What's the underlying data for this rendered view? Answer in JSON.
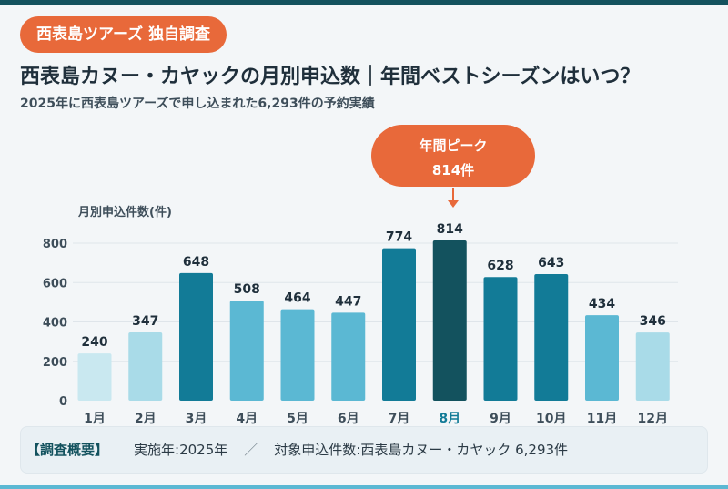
{
  "tag": "西表島ツアーズ 独自調査",
  "title": "西表島カヌー・カヤックの月別申込数｜年間ベストシーズンはいつ？",
  "subtitle": "2025年に西表島ツアーズで申し込まれた6,293件の予約実績",
  "peak": {
    "line1": "年間ピーク",
    "line2": "814件"
  },
  "footer": {
    "label": "【調査概要】",
    "year": "実施年:2025年",
    "separator": "／",
    "target": "対象申込件数:西表島カヌー・カヤック 6,293件"
  },
  "colors": {
    "peak_bar": "#13525e",
    "high": "#127b97",
    "mid": "#5bb8d3",
    "low": "#a9dbe8",
    "lowest": "#c9e8f0",
    "accent": "#e8693a"
  },
  "chart_data": {
    "type": "bar",
    "ylabel": "月別申込件数(件)",
    "xlabel": "",
    "categories": [
      "1月",
      "2月",
      "3月",
      "4月",
      "5月",
      "6月",
      "7月",
      "8月",
      "9月",
      "10月",
      "11月",
      "12月"
    ],
    "values": [
      240,
      347,
      648,
      508,
      464,
      447,
      774,
      814,
      628,
      643,
      434,
      346
    ],
    "data_labels": [
      "240",
      "347",
      "648",
      "508",
      "464",
      "447",
      "774",
      "814",
      "628",
      "643",
      "434",
      "346"
    ],
    "yticks": [
      0,
      200,
      400,
      600,
      800
    ],
    "ylim": [
      0,
      800
    ],
    "grid": true,
    "highlight_category": "8月"
  }
}
